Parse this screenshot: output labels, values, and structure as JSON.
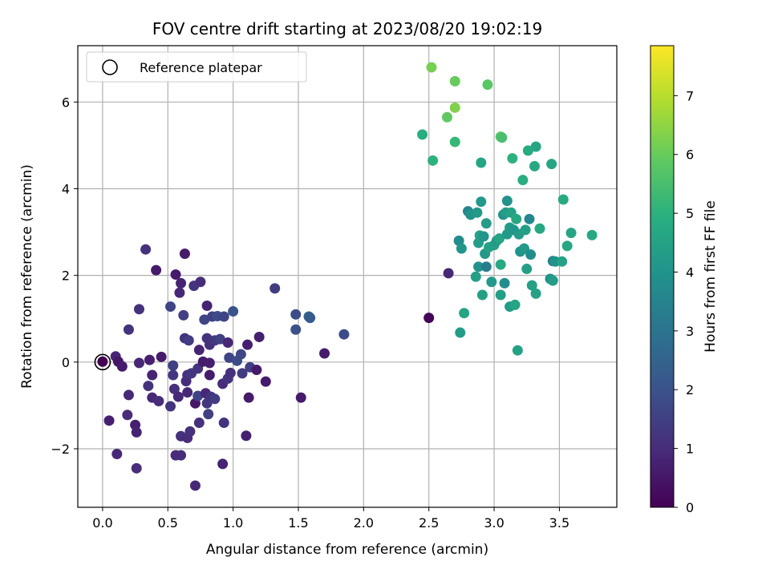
{
  "chart_data": {
    "type": "scatter",
    "title": "FOV centre drift starting at 2023/08/20 19:02:19",
    "xlabel": "Angular distance from reference (arcmin)",
    "ylabel": "Rotation from reference (arcmin)",
    "xlim": [
      -0.19,
      3.94
    ],
    "ylim": [
      -3.35,
      7.3
    ],
    "xticks": [
      0.0,
      0.5,
      1.0,
      1.5,
      2.0,
      2.5,
      3.0,
      3.5
    ],
    "xtick_labels": [
      "0.0",
      "0.5",
      "1.0",
      "1.5",
      "2.0",
      "2.5",
      "3.0",
      "3.5"
    ],
    "yticks": [
      -2,
      0,
      2,
      4,
      6
    ],
    "ytick_labels": [
      "−2",
      "0",
      "2",
      "4",
      "6"
    ],
    "grid": true,
    "legend": {
      "position": "top-left",
      "entries": [
        "Reference platepar"
      ]
    },
    "colorbar": {
      "label": "Hours from first FF file",
      "range": [
        0,
        7.85
      ],
      "ticks": [
        0,
        1,
        2,
        3,
        4,
        5,
        6,
        7
      ],
      "tick_labels": [
        "0",
        "1",
        "2",
        "3",
        "4",
        "5",
        "6",
        "7"
      ],
      "colormap": "viridis"
    },
    "reference_point": {
      "x": 0.0,
      "y": 0.0
    },
    "points": [
      {
        "x": 0.0,
        "y": 0.01,
        "h": 0.0
      },
      {
        "x": 0.05,
        "y": -1.35,
        "h": 0.7
      },
      {
        "x": 0.1,
        "y": 0.13,
        "h": 0.8
      },
      {
        "x": 0.11,
        "y": -2.12,
        "h": 0.9
      },
      {
        "x": 0.12,
        "y": 0.01,
        "h": 0.5
      },
      {
        "x": 0.15,
        "y": -0.1,
        "h": 0.6
      },
      {
        "x": 0.19,
        "y": -1.22,
        "h": 1.0
      },
      {
        "x": 0.2,
        "y": 0.75,
        "h": 1.2
      },
      {
        "x": 0.2,
        "y": -0.76,
        "h": 0.9
      },
      {
        "x": 0.25,
        "y": -1.45,
        "h": 0.7
      },
      {
        "x": 0.26,
        "y": -1.62,
        "h": 0.8
      },
      {
        "x": 0.26,
        "y": -2.45,
        "h": 1.0
      },
      {
        "x": 0.28,
        "y": 1.22,
        "h": 1.1
      },
      {
        "x": 0.28,
        "y": -0.02,
        "h": 0.9
      },
      {
        "x": 0.33,
        "y": 2.6,
        "h": 1.1
      },
      {
        "x": 0.35,
        "y": -0.55,
        "h": 1.2
      },
      {
        "x": 0.36,
        "y": 0.05,
        "h": 0.7
      },
      {
        "x": 0.38,
        "y": -0.3,
        "h": 0.8
      },
      {
        "x": 0.38,
        "y": -0.82,
        "h": 0.9
      },
      {
        "x": 0.41,
        "y": 2.12,
        "h": 0.6
      },
      {
        "x": 0.43,
        "y": -0.9,
        "h": 1.0
      },
      {
        "x": 0.45,
        "y": 0.12,
        "h": 0.6
      },
      {
        "x": 0.52,
        "y": 1.28,
        "h": 1.6
      },
      {
        "x": 0.52,
        "y": -1.02,
        "h": 1.2
      },
      {
        "x": 0.54,
        "y": -0.08,
        "h": 1.5
      },
      {
        "x": 0.54,
        "y": -0.3,
        "h": 1.3
      },
      {
        "x": 0.55,
        "y": -0.62,
        "h": 1.1
      },
      {
        "x": 0.56,
        "y": 2.02,
        "h": 0.6
      },
      {
        "x": 0.56,
        "y": -2.15,
        "h": 1.0
      },
      {
        "x": 0.58,
        "y": -0.8,
        "h": 0.9
      },
      {
        "x": 0.59,
        "y": 1.6,
        "h": 0.9
      },
      {
        "x": 0.6,
        "y": -1.71,
        "h": 1.1
      },
      {
        "x": 0.6,
        "y": -2.15,
        "h": 1.0
      },
      {
        "x": 0.6,
        "y": 1.82,
        "h": 0.8
      },
      {
        "x": 0.62,
        "y": 1.08,
        "h": 1.5
      },
      {
        "x": 0.63,
        "y": 2.5,
        "h": 0.6
      },
      {
        "x": 0.63,
        "y": 0.55,
        "h": 1.2
      },
      {
        "x": 0.64,
        "y": -0.44,
        "h": 1.0
      },
      {
        "x": 0.65,
        "y": -1.75,
        "h": 1.0
      },
      {
        "x": 0.65,
        "y": -0.3,
        "h": 1.1
      },
      {
        "x": 0.65,
        "y": -0.7,
        "h": 0.9
      },
      {
        "x": 0.66,
        "y": 0.5,
        "h": 1.4
      },
      {
        "x": 0.67,
        "y": -1.6,
        "h": 1.1
      },
      {
        "x": 0.68,
        "y": -0.26,
        "h": 1.3
      },
      {
        "x": 0.7,
        "y": 1.76,
        "h": 1.2
      },
      {
        "x": 0.71,
        "y": -0.95,
        "h": 0.5
      },
      {
        "x": 0.71,
        "y": -2.85,
        "h": 0.9
      },
      {
        "x": 0.73,
        "y": -0.78,
        "h": 1.6
      },
      {
        "x": 0.73,
        "y": -0.15,
        "h": 1.2
      },
      {
        "x": 0.74,
        "y": 0.28,
        "h": 0.8
      },
      {
        "x": 0.74,
        "y": -1.4,
        "h": 1.1
      },
      {
        "x": 0.75,
        "y": 1.85,
        "h": 1.0
      },
      {
        "x": 0.77,
        "y": 0.01,
        "h": 0.6
      },
      {
        "x": 0.78,
        "y": 0.98,
        "h": 1.6
      },
      {
        "x": 0.79,
        "y": -0.72,
        "h": 0.9
      },
      {
        "x": 0.8,
        "y": 1.3,
        "h": 0.8
      },
      {
        "x": 0.8,
        "y": 0.55,
        "h": 1.2
      },
      {
        "x": 0.8,
        "y": -0.95,
        "h": 1.3
      },
      {
        "x": 0.81,
        "y": -1.2,
        "h": 1.5
      },
      {
        "x": 0.82,
        "y": 0.4,
        "h": 1.1
      },
      {
        "x": 0.82,
        "y": -0.3,
        "h": 0.6
      },
      {
        "x": 0.82,
        "y": -0.02,
        "h": 0.7
      },
      {
        "x": 0.83,
        "y": -0.8,
        "h": 1.2
      },
      {
        "x": 0.84,
        "y": 1.05,
        "h": 1.5
      },
      {
        "x": 0.86,
        "y": 0.5,
        "h": 1.3
      },
      {
        "x": 0.86,
        "y": -0.85,
        "h": 1.4
      },
      {
        "x": 0.88,
        "y": 1.06,
        "h": 1.8
      },
      {
        "x": 0.9,
        "y": 0.53,
        "h": 1.5
      },
      {
        "x": 0.92,
        "y": -0.5,
        "h": 1.0
      },
      {
        "x": 0.92,
        "y": -2.35,
        "h": 0.8
      },
      {
        "x": 0.93,
        "y": -1.4,
        "h": 1.2
      },
      {
        "x": 0.93,
        "y": 1.05,
        "h": 1.6
      },
      {
        "x": 0.96,
        "y": -0.38,
        "h": 1.2
      },
      {
        "x": 0.96,
        "y": 0.45,
        "h": 0.9
      },
      {
        "x": 0.97,
        "y": 0.1,
        "h": 1.6
      },
      {
        "x": 0.98,
        "y": -0.25,
        "h": 1.1
      },
      {
        "x": 1.0,
        "y": 1.17,
        "h": 2.0
      },
      {
        "x": 1.03,
        "y": 0.03,
        "h": 1.8
      },
      {
        "x": 1.06,
        "y": 0.18,
        "h": 1.7
      },
      {
        "x": 1.07,
        "y": -0.26,
        "h": 1.4
      },
      {
        "x": 1.1,
        "y": -1.7,
        "h": 0.7
      },
      {
        "x": 1.11,
        "y": 0.4,
        "h": 0.7
      },
      {
        "x": 1.12,
        "y": -0.82,
        "h": 0.6
      },
      {
        "x": 1.13,
        "y": -0.12,
        "h": 1.5
      },
      {
        "x": 1.18,
        "y": -0.18,
        "h": 0.6
      },
      {
        "x": 1.2,
        "y": 0.58,
        "h": 0.7
      },
      {
        "x": 1.25,
        "y": -0.45,
        "h": 0.6
      },
      {
        "x": 1.32,
        "y": 1.7,
        "h": 1.4
      },
      {
        "x": 1.48,
        "y": 1.1,
        "h": 1.8
      },
      {
        "x": 1.48,
        "y": 0.75,
        "h": 1.9
      },
      {
        "x": 1.52,
        "y": -0.82,
        "h": 0.6
      },
      {
        "x": 1.58,
        "y": 1.05,
        "h": 2.5
      },
      {
        "x": 1.59,
        "y": 1.02,
        "h": 2.2
      },
      {
        "x": 1.7,
        "y": 0.2,
        "h": 0.6
      },
      {
        "x": 1.85,
        "y": 0.64,
        "h": 1.8
      },
      {
        "x": 2.45,
        "y": 5.25,
        "h": 4.9
      },
      {
        "x": 2.5,
        "y": 1.02,
        "h": 0.1
      },
      {
        "x": 2.52,
        "y": 6.8,
        "h": 6.2
      },
      {
        "x": 2.53,
        "y": 4.65,
        "h": 5.0
      },
      {
        "x": 2.64,
        "y": 5.65,
        "h": 5.9
      },
      {
        "x": 2.65,
        "y": 2.05,
        "h": 0.9
      },
      {
        "x": 2.7,
        "y": 6.48,
        "h": 6.0
      },
      {
        "x": 2.7,
        "y": 5.08,
        "h": 5.2
      },
      {
        "x": 2.7,
        "y": 5.87,
        "h": 6.3
      },
      {
        "x": 2.73,
        "y": 2.8,
        "h": 3.8
      },
      {
        "x": 2.74,
        "y": 0.68,
        "h": 4.3
      },
      {
        "x": 2.75,
        "y": 2.62,
        "h": 4.1
      },
      {
        "x": 2.77,
        "y": 1.13,
        "h": 4.6
      },
      {
        "x": 2.8,
        "y": 3.48,
        "h": 3.6
      },
      {
        "x": 2.82,
        "y": 3.4,
        "h": 4.0
      },
      {
        "x": 2.86,
        "y": 1.97,
        "h": 4.4
      },
      {
        "x": 2.87,
        "y": 3.45,
        "h": 4.2
      },
      {
        "x": 2.88,
        "y": 2.2,
        "h": 4.0
      },
      {
        "x": 2.88,
        "y": 2.75,
        "h": 4.3
      },
      {
        "x": 2.89,
        "y": 2.92,
        "h": 4.5
      },
      {
        "x": 2.9,
        "y": 3.7,
        "h": 4.2
      },
      {
        "x": 2.9,
        "y": 4.6,
        "h": 4.6
      },
      {
        "x": 2.91,
        "y": 1.55,
        "h": 4.4
      },
      {
        "x": 2.92,
        "y": 2.9,
        "h": 4.1
      },
      {
        "x": 2.93,
        "y": 2.5,
        "h": 4.2
      },
      {
        "x": 2.94,
        "y": 3.2,
        "h": 4.3
      },
      {
        "x": 2.94,
        "y": 2.2,
        "h": 3.3
      },
      {
        "x": 2.95,
        "y": 6.4,
        "h": 5.8
      },
      {
        "x": 2.96,
        "y": 2.65,
        "h": 4.5
      },
      {
        "x": 2.98,
        "y": 1.85,
        "h": 4.2
      },
      {
        "x": 3.0,
        "y": 2.7,
        "h": 4.4
      },
      {
        "x": 3.02,
        "y": 2.8,
        "h": 4.2
      },
      {
        "x": 3.04,
        "y": 2.85,
        "h": 4.6
      },
      {
        "x": 3.05,
        "y": 5.2,
        "h": 5.8
      },
      {
        "x": 3.05,
        "y": 2.25,
        "h": 4.7
      },
      {
        "x": 3.05,
        "y": 1.55,
        "h": 4.4
      },
      {
        "x": 3.06,
        "y": 5.18,
        "h": 5.5
      },
      {
        "x": 3.07,
        "y": 3.4,
        "h": 4.0
      },
      {
        "x": 3.08,
        "y": 1.82,
        "h": 3.8
      },
      {
        "x": 3.09,
        "y": 3.45,
        "h": 4.3
      },
      {
        "x": 3.1,
        "y": 3.72,
        "h": 4.0
      },
      {
        "x": 3.1,
        "y": 2.95,
        "h": 4.2
      },
      {
        "x": 3.12,
        "y": 3.1,
        "h": 4.3
      },
      {
        "x": 3.12,
        "y": 1.28,
        "h": 4.3
      },
      {
        "x": 3.13,
        "y": 3.45,
        "h": 4.5
      },
      {
        "x": 3.14,
        "y": 4.7,
        "h": 5.0
      },
      {
        "x": 3.15,
        "y": 3.05,
        "h": 4.1
      },
      {
        "x": 3.16,
        "y": 1.32,
        "h": 4.6
      },
      {
        "x": 3.17,
        "y": 3.3,
        "h": 4.7
      },
      {
        "x": 3.18,
        "y": 0.27,
        "h": 4.5
      },
      {
        "x": 3.19,
        "y": 2.95,
        "h": 4.3
      },
      {
        "x": 3.2,
        "y": 2.55,
        "h": 4.0
      },
      {
        "x": 3.22,
        "y": 4.2,
        "h": 4.9
      },
      {
        "x": 3.23,
        "y": 2.62,
        "h": 4.2
      },
      {
        "x": 3.24,
        "y": 3.05,
        "h": 4.4
      },
      {
        "x": 3.25,
        "y": 2.15,
        "h": 4.4
      },
      {
        "x": 3.26,
        "y": 4.88,
        "h": 4.8
      },
      {
        "x": 3.27,
        "y": 3.3,
        "h": 3.6
      },
      {
        "x": 3.28,
        "y": 2.48,
        "h": 3.8
      },
      {
        "x": 3.29,
        "y": 1.77,
        "h": 4.4
      },
      {
        "x": 3.31,
        "y": 4.52,
        "h": 4.7
      },
      {
        "x": 3.32,
        "y": 4.97,
        "h": 4.6
      },
      {
        "x": 3.32,
        "y": 1.58,
        "h": 4.5
      },
      {
        "x": 3.35,
        "y": 3.08,
        "h": 4.7
      },
      {
        "x": 3.43,
        "y": 1.92,
        "h": 3.9
      },
      {
        "x": 3.44,
        "y": 4.57,
        "h": 4.6
      },
      {
        "x": 3.45,
        "y": 2.33,
        "h": 3.5
      },
      {
        "x": 3.45,
        "y": 1.88,
        "h": 4.3
      },
      {
        "x": 3.47,
        "y": 2.32,
        "h": 4.0
      },
      {
        "x": 3.52,
        "y": 2.32,
        "h": 4.5
      },
      {
        "x": 3.53,
        "y": 3.75,
        "h": 4.8
      },
      {
        "x": 3.56,
        "y": 2.68,
        "h": 4.7
      },
      {
        "x": 3.59,
        "y": 2.98,
        "h": 4.6
      },
      {
        "x": 3.75,
        "y": 2.93,
        "h": 4.7
      }
    ]
  }
}
